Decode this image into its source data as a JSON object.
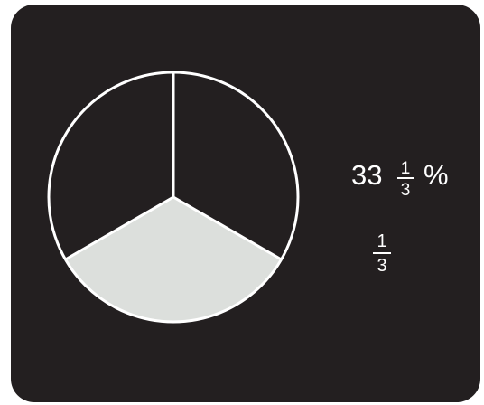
{
  "percent": {
    "whole": "33",
    "numerator": "1",
    "denominator": "3",
    "sign": "%"
  },
  "fraction": {
    "numerator": "1",
    "denominator": "3"
  }
}
